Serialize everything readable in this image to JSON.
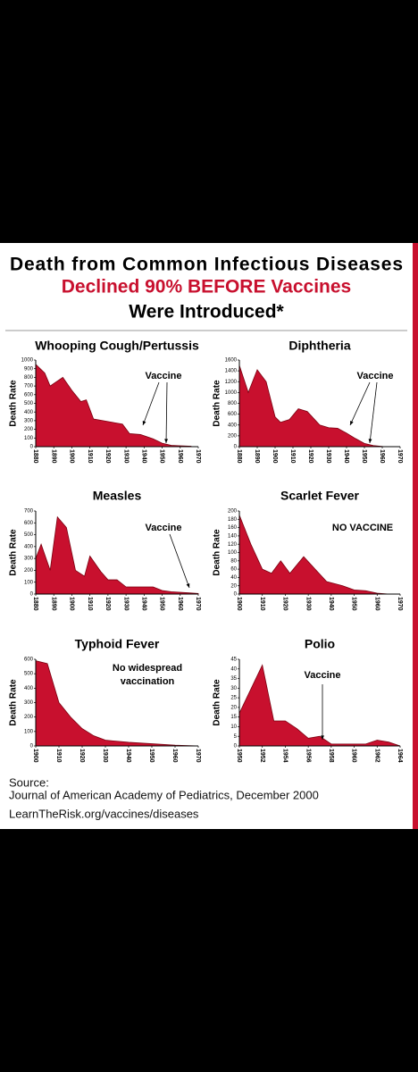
{
  "header": {
    "lines": [
      "Death from Common Infectious Diseases",
      "Declined 90% BEFORE Vaccines",
      "Were Introduced*"
    ]
  },
  "chart_data": [
    {
      "type": "area",
      "title": "Whooping Cough/Pertussis",
      "y_label": "Death Rate",
      "annotation": [
        "Vaccine"
      ],
      "color": "#c8102e",
      "x": [
        1880,
        1885,
        1888,
        1895,
        1900,
        1905,
        1908,
        1912,
        1920,
        1928,
        1932,
        1938,
        1945,
        1950,
        1955,
        1960,
        1966
      ],
      "values": [
        950,
        850,
        700,
        800,
        650,
        520,
        540,
        320,
        290,
        260,
        150,
        140,
        90,
        40,
        15,
        10,
        5
      ],
      "xlim": [
        1880,
        1970
      ],
      "xticks": [
        1880,
        1890,
        1900,
        1910,
        1920,
        1930,
        1940,
        1950,
        1960,
        1970
      ],
      "ylim": [
        0,
        1000
      ],
      "yticks": [
        0,
        100,
        200,
        300,
        400,
        500,
        600,
        700,
        800,
        900,
        1000
      ]
    },
    {
      "type": "area",
      "title": "Diphtheria",
      "y_label": "Death Rate",
      "annotation": [
        "Vaccine"
      ],
      "color": "#c8102e",
      "x": [
        1880,
        1885,
        1890,
        1895,
        1900,
        1903,
        1908,
        1913,
        1918,
        1925,
        1930,
        1935,
        1940,
        1945,
        1950,
        1955,
        1960
      ],
      "values": [
        1500,
        1000,
        1420,
        1200,
        550,
        450,
        500,
        700,
        650,
        400,
        350,
        340,
        250,
        150,
        60,
        20,
        5
      ],
      "xlim": [
        1880,
        1970
      ],
      "xticks": [
        1880,
        1890,
        1900,
        1910,
        1920,
        1930,
        1940,
        1950,
        1960,
        1970
      ],
      "ylim": [
        0,
        1600
      ],
      "yticks": [
        0,
        200,
        400,
        600,
        800,
        1000,
        1200,
        1400,
        1600
      ]
    },
    {
      "type": "area",
      "title": "Measles",
      "y_label": "Death Rate",
      "annotation": [
        "Vaccine"
      ],
      "color": "#c8102e",
      "x": [
        1880,
        1883,
        1888,
        1892,
        1897,
        1902,
        1907,
        1910,
        1916,
        1920,
        1925,
        1930,
        1940,
        1945,
        1950,
        1955,
        1965,
        1970
      ],
      "values": [
        300,
        420,
        200,
        650,
        560,
        200,
        150,
        320,
        190,
        120,
        120,
        60,
        60,
        60,
        30,
        20,
        10,
        5
      ],
      "xlim": [
        1880,
        1970
      ],
      "xticks": [
        1880,
        1890,
        1900,
        1910,
        1920,
        1930,
        1940,
        1950,
        1960,
        1970
      ],
      "ylim": [
        0,
        700
      ],
      "yticks": [
        0,
        100,
        200,
        300,
        400,
        500,
        600,
        700
      ]
    },
    {
      "type": "area",
      "title": "Scarlet Fever",
      "y_label": "Death Rate",
      "annotation": [
        "NO VACCINE"
      ],
      "color": "#c8102e",
      "x": [
        1900,
        1905,
        1910,
        1914,
        1918,
        1922,
        1928,
        1933,
        1938,
        1945,
        1950,
        1955,
        1960,
        1965
      ],
      "values": [
        190,
        120,
        60,
        50,
        80,
        50,
        90,
        60,
        30,
        20,
        10,
        8,
        2,
        0
      ],
      "xlim": [
        1900,
        1970
      ],
      "xticks": [
        1900,
        1910,
        1920,
        1930,
        1940,
        1950,
        1960,
        1970
      ],
      "ylim": [
        0,
        200
      ],
      "yticks": [
        0,
        20,
        40,
        60,
        80,
        100,
        120,
        140,
        160,
        180,
        200
      ]
    },
    {
      "type": "area",
      "title": "Typhoid Fever",
      "y_label": "Death Rate",
      "annotation": [
        "No widespread",
        "vaccination"
      ],
      "color": "#c8102e",
      "x": [
        1900,
        1905,
        1910,
        1915,
        1920,
        1925,
        1930,
        1940,
        1950,
        1960,
        1970
      ],
      "values": [
        590,
        570,
        300,
        200,
        120,
        70,
        40,
        25,
        15,
        5,
        0
      ],
      "xlim": [
        1900,
        1970
      ],
      "xticks": [
        1900,
        1910,
        1920,
        1930,
        1940,
        1950,
        1960,
        1970
      ],
      "ylim": [
        0,
        600
      ],
      "yticks": [
        0,
        100,
        200,
        300,
        400,
        500,
        600
      ]
    },
    {
      "type": "area",
      "title": "Polio",
      "y_label": "Death Rate",
      "annotation": [
        "Vaccine"
      ],
      "color": "#c8102e",
      "x": [
        1950,
        1952,
        1953,
        1954,
        1955,
        1956,
        1957,
        1958,
        1960,
        1961,
        1962,
        1963,
        1964
      ],
      "values": [
        17,
        42,
        13,
        13,
        9,
        4,
        5,
        1,
        1,
        1,
        3,
        2,
        0
      ],
      "xlim": [
        1950,
        1964
      ],
      "xticks": [
        1950,
        1952,
        1954,
        1956,
        1958,
        1960,
        1962,
        1964
      ],
      "ylim": [
        0,
        45
      ],
      "yticks": [
        0,
        5,
        10,
        15,
        20,
        25,
        30,
        35,
        40,
        45
      ]
    }
  ],
  "source": {
    "lines": [
      "Source:",
      "Journal of American Academy of Pediatrics, December 2000",
      "LearnTheRisk.org/vaccines/diseases"
    ]
  }
}
